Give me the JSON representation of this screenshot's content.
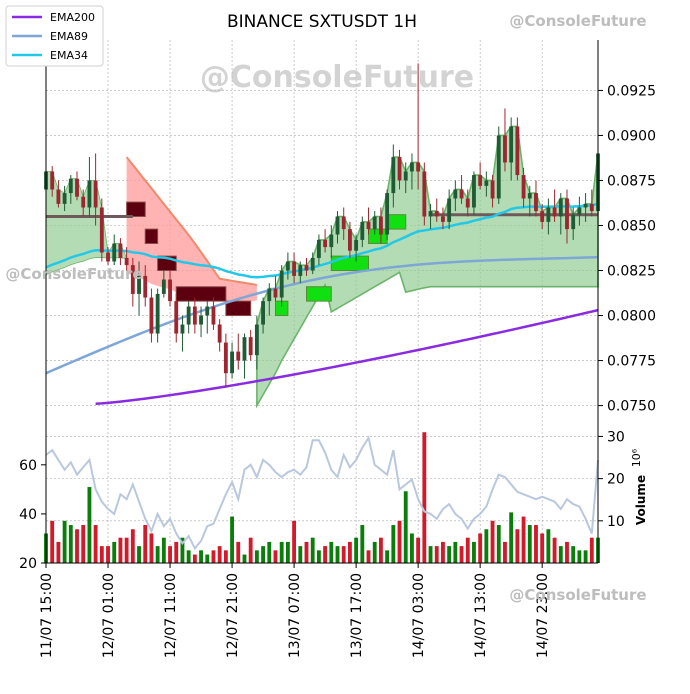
{
  "header": {
    "title": "BINANCE SXTUSDT 1H",
    "watermark": "@ConsoleFuture"
  },
  "legend": [
    {
      "name": "EMA200",
      "color": "#8a2be2"
    },
    {
      "name": "EMA89",
      "color": "#7ea6d6"
    },
    {
      "name": "EMA34",
      "color": "#22c8e8"
    }
  ],
  "chart_data": {
    "type": "candlestick",
    "title": "BINANCE SXTUSDT 1H",
    "price_axis": {
      "ylim": [
        0.0742,
        0.0953
      ],
      "ticks": [
        "0.0750",
        "0.0775",
        "0.0800",
        "0.0825",
        "0.0850",
        "0.0875",
        "0.0900",
        "0.0925"
      ],
      "tick_values": [
        0.075,
        0.0775,
        0.08,
        0.0825,
        0.085,
        0.0875,
        0.09,
        0.0925
      ]
    },
    "volume_axis": {
      "label": "Volume",
      "exponent": "10⁶",
      "ylim": [
        0,
        32
      ],
      "ticks": [
        10,
        20,
        30
      ]
    },
    "indicator_axis": {
      "ylim": [
        20,
        75
      ],
      "ticks": [
        20,
        40,
        60
      ]
    },
    "x_ticks": [
      "11/07 15:00",
      "12/07 01:00",
      "12/07 11:00",
      "12/07 21:00",
      "13/07 07:00",
      "13/07 17:00",
      "14/07 03:00",
      "14/07 13:00",
      "14/07 23:00"
    ],
    "x_tick_index": [
      0,
      10,
      20,
      30,
      40,
      50,
      60,
      70,
      80
    ],
    "candles": [
      [
        0.087,
        0.088,
        0.086,
        0.088
      ],
      [
        0.088,
        0.0883,
        0.0866,
        0.087
      ],
      [
        0.087,
        0.0875,
        0.086,
        0.0862
      ],
      [
        0.0862,
        0.0872,
        0.0858,
        0.0868
      ],
      [
        0.0868,
        0.0878,
        0.0862,
        0.0876
      ],
      [
        0.0876,
        0.088,
        0.0864,
        0.0866
      ],
      [
        0.0866,
        0.087,
        0.0855,
        0.086
      ],
      [
        0.086,
        0.0888,
        0.0855,
        0.0875
      ],
      [
        0.0875,
        0.089,
        0.085,
        0.086
      ],
      [
        0.086,
        0.0865,
        0.083,
        0.0835
      ],
      [
        0.0835,
        0.0838,
        0.0828,
        0.083
      ],
      [
        0.083,
        0.0845,
        0.0828,
        0.084
      ],
      [
        0.084,
        0.0843,
        0.0828,
        0.0832
      ],
      [
        0.0832,
        0.0838,
        0.0825,
        0.0828
      ],
      [
        0.0828,
        0.0832,
        0.0805,
        0.0812
      ],
      [
        0.0812,
        0.083,
        0.08,
        0.0822
      ],
      [
        0.0822,
        0.0828,
        0.0805,
        0.081
      ],
      [
        0.081,
        0.0815,
        0.0785,
        0.079
      ],
      [
        0.079,
        0.0815,
        0.0785,
        0.0812
      ],
      [
        0.0812,
        0.0825,
        0.081,
        0.082
      ],
      [
        0.082,
        0.0825,
        0.0805,
        0.0808
      ],
      [
        0.0808,
        0.0812,
        0.0785,
        0.079
      ],
      [
        0.079,
        0.08,
        0.078,
        0.0795
      ],
      [
        0.0795,
        0.0808,
        0.079,
        0.0805
      ],
      [
        0.0805,
        0.081,
        0.079,
        0.0795
      ],
      [
        0.0795,
        0.0805,
        0.0788,
        0.08
      ],
      [
        0.08,
        0.0808,
        0.079,
        0.0805
      ],
      [
        0.0805,
        0.081,
        0.0792,
        0.0795
      ],
      [
        0.0795,
        0.0798,
        0.078,
        0.0785
      ],
      [
        0.0785,
        0.079,
        0.076,
        0.0768
      ],
      [
        0.0768,
        0.0785,
        0.0765,
        0.078
      ],
      [
        0.078,
        0.079,
        0.077,
        0.0775
      ],
      [
        0.0775,
        0.079,
        0.0765,
        0.0788
      ],
      [
        0.0788,
        0.0792,
        0.0775,
        0.0778
      ],
      [
        0.0778,
        0.08,
        0.077,
        0.0795
      ],
      [
        0.0795,
        0.081,
        0.079,
        0.0808
      ],
      [
        0.0808,
        0.0818,
        0.08,
        0.0815
      ],
      [
        0.0815,
        0.0822,
        0.0808,
        0.081
      ],
      [
        0.081,
        0.0828,
        0.0805,
        0.0825
      ],
      [
        0.0825,
        0.0835,
        0.082,
        0.083
      ],
      [
        0.083,
        0.0835,
        0.0818,
        0.0822
      ],
      [
        0.0822,
        0.083,
        0.0818,
        0.0828
      ],
      [
        0.0828,
        0.0832,
        0.0822,
        0.0825
      ],
      [
        0.0825,
        0.0835,
        0.0823,
        0.0832
      ],
      [
        0.0832,
        0.0845,
        0.0828,
        0.0842
      ],
      [
        0.0842,
        0.0848,
        0.0835,
        0.0838
      ],
      [
        0.0838,
        0.085,
        0.0832,
        0.0845
      ],
      [
        0.0845,
        0.0858,
        0.084,
        0.0855
      ],
      [
        0.0855,
        0.086,
        0.0842,
        0.0848
      ],
      [
        0.0848,
        0.0852,
        0.0832,
        0.0836
      ],
      [
        0.0836,
        0.0845,
        0.083,
        0.0842
      ],
      [
        0.0842,
        0.0855,
        0.0838,
        0.0852
      ],
      [
        0.0852,
        0.086,
        0.0845,
        0.0848
      ],
      [
        0.0848,
        0.0858,
        0.0845,
        0.0855
      ],
      [
        0.0855,
        0.086,
        0.084,
        0.0845
      ],
      [
        0.0845,
        0.087,
        0.0842,
        0.0868
      ],
      [
        0.0868,
        0.0895,
        0.086,
        0.0888
      ],
      [
        0.0888,
        0.0892,
        0.087,
        0.0875
      ],
      [
        0.0875,
        0.0885,
        0.0868,
        0.088
      ],
      [
        0.088,
        0.089,
        0.087,
        0.0885
      ],
      [
        0.0885,
        0.094,
        0.087,
        0.088
      ],
      [
        0.088,
        0.0885,
        0.085,
        0.0855
      ],
      [
        0.0855,
        0.0862,
        0.0848,
        0.0858
      ],
      [
        0.0858,
        0.0865,
        0.0852,
        0.0855
      ],
      [
        0.0855,
        0.086,
        0.0848,
        0.0852
      ],
      [
        0.0852,
        0.087,
        0.0848,
        0.0865
      ],
      [
        0.0865,
        0.0875,
        0.0858,
        0.087
      ],
      [
        0.087,
        0.0878,
        0.0862,
        0.0865
      ],
      [
        0.0865,
        0.087,
        0.0855,
        0.086
      ],
      [
        0.086,
        0.088,
        0.0856,
        0.0878
      ],
      [
        0.0878,
        0.0885,
        0.087,
        0.0872
      ],
      [
        0.0872,
        0.088,
        0.0866,
        0.0875
      ],
      [
        0.0875,
        0.0878,
        0.086,
        0.0865
      ],
      [
        0.0865,
        0.0905,
        0.0862,
        0.09
      ],
      [
        0.09,
        0.0915,
        0.088,
        0.0885
      ],
      [
        0.0885,
        0.091,
        0.0875,
        0.0905
      ],
      [
        0.0905,
        0.091,
        0.0875,
        0.0878
      ],
      [
        0.0878,
        0.0882,
        0.086,
        0.0865
      ],
      [
        0.0865,
        0.0872,
        0.0855,
        0.0868
      ],
      [
        0.0868,
        0.0875,
        0.0855,
        0.0858
      ],
      [
        0.0858,
        0.0862,
        0.0848,
        0.0852
      ],
      [
        0.0852,
        0.0865,
        0.0845,
        0.086
      ],
      [
        0.086,
        0.087,
        0.0852,
        0.0855
      ],
      [
        0.0855,
        0.0868,
        0.0845,
        0.0865
      ],
      [
        0.0865,
        0.087,
        0.084,
        0.0848
      ],
      [
        0.0848,
        0.086,
        0.0842,
        0.0856
      ],
      [
        0.0856,
        0.0866,
        0.085,
        0.086
      ],
      [
        0.086,
        0.0868,
        0.0852,
        0.0862
      ],
      [
        0.0862,
        0.087,
        0.0855,
        0.0858
      ],
      [
        0.0858,
        0.09,
        0.0855,
        0.089
      ]
    ],
    "volume": [
      7,
      10,
      5,
      10,
      9,
      8,
      9,
      18,
      9,
      4,
      4,
      5,
      6,
      6,
      8,
      4,
      9,
      7,
      4,
      6,
      4,
      5,
      6,
      3,
      2,
      3,
      2,
      3,
      4,
      3,
      11,
      5,
      2,
      6,
      3,
      4,
      5,
      3,
      5,
      5,
      10,
      4,
      5,
      6,
      3,
      4,
      5,
      4,
      4,
      5,
      6,
      9,
      3,
      5,
      6,
      3,
      9,
      10,
      17,
      7,
      6,
      31,
      4,
      4,
      5,
      4,
      5,
      4,
      6,
      5,
      7,
      8,
      10,
      9,
      5,
      12,
      8,
      11,
      9,
      9,
      7,
      8,
      6,
      4,
      5,
      4,
      3,
      3,
      6,
      6
    ],
    "volume_colors": "green when close >= open, red when close < open",
    "indicator": [
      64,
      66,
      62,
      58,
      61,
      56,
      59,
      62,
      50,
      45,
      42,
      40,
      48,
      46,
      52,
      45,
      38,
      33,
      40,
      35,
      38,
      32,
      28,
      31,
      26,
      29,
      35,
      36,
      42,
      48,
      53,
      46,
      58,
      60,
      55,
      62,
      60,
      57,
      55,
      57,
      58,
      56,
      59,
      70,
      70,
      65,
      58,
      55,
      64,
      59,
      62,
      67,
      71,
      60,
      58,
      56,
      66,
      50,
      52,
      54,
      46,
      41,
      40,
      38,
      42,
      44,
      40,
      38,
      34,
      38,
      40,
      43,
      50,
      56,
      55,
      52,
      49,
      48,
      47,
      46,
      47,
      46,
      45,
      42,
      46,
      44,
      43,
      38,
      32,
      62
    ],
    "ema200": {
      "name": "EMA200",
      "values_from_index": 8,
      "start": 0.0751,
      "end": 0.0803
    },
    "ema89": {
      "name": "EMA89",
      "start": 0.0772,
      "end": 0.0842
    },
    "ema34": {
      "name": "EMA34",
      "start": 0.0825,
      "end": 0.0862
    }
  }
}
